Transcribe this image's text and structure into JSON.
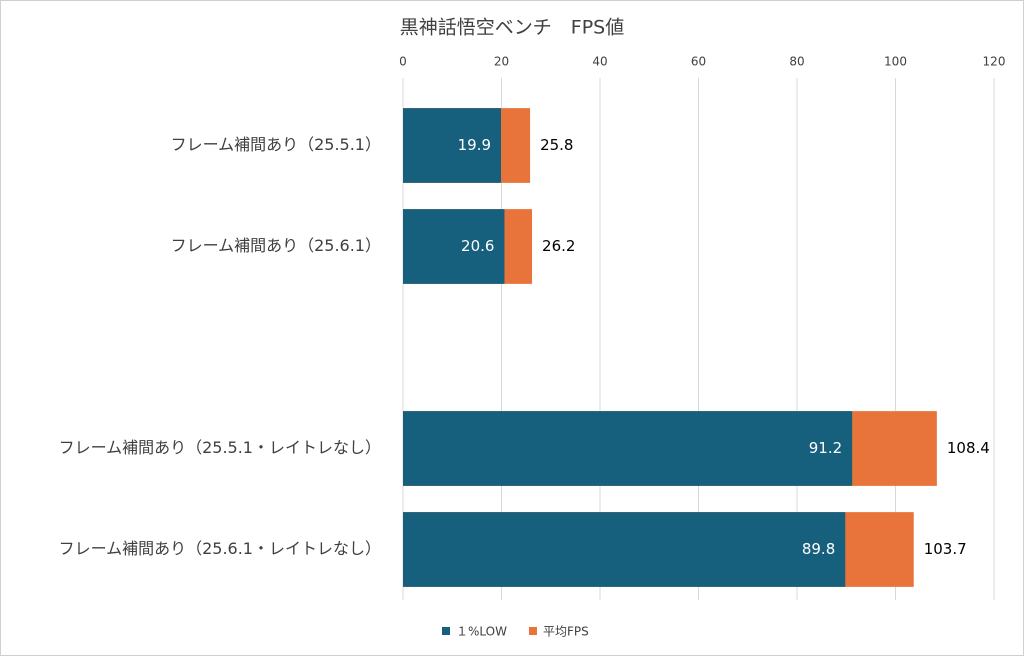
{
  "chart_data": {
    "type": "bar",
    "orientation": "horizontal",
    "overlap": true,
    "title": "黒神話悟空ベンチ　FPS値",
    "categories": [
      "フレーム補間あり（25.5.1）",
      "フレーム補間あり（25.6.1）",
      null,
      "フレーム補間あり（25.5.1・レイトレなし）",
      "フレーム補間あり（25.6.1・レイトレなし）"
    ],
    "series": [
      {
        "name": "１%LOW",
        "color": "#17607d",
        "values": [
          19.9,
          20.6,
          null,
          91.2,
          89.8
        ]
      },
      {
        "name": "平均FPS",
        "color": "#e8743b",
        "values": [
          25.8,
          26.2,
          null,
          108.4,
          103.7
        ]
      }
    ],
    "xlim": [
      0,
      120
    ],
    "xticks": [
      0,
      20,
      40,
      60,
      80,
      100,
      120
    ],
    "grid": true,
    "legend": "bottom"
  }
}
